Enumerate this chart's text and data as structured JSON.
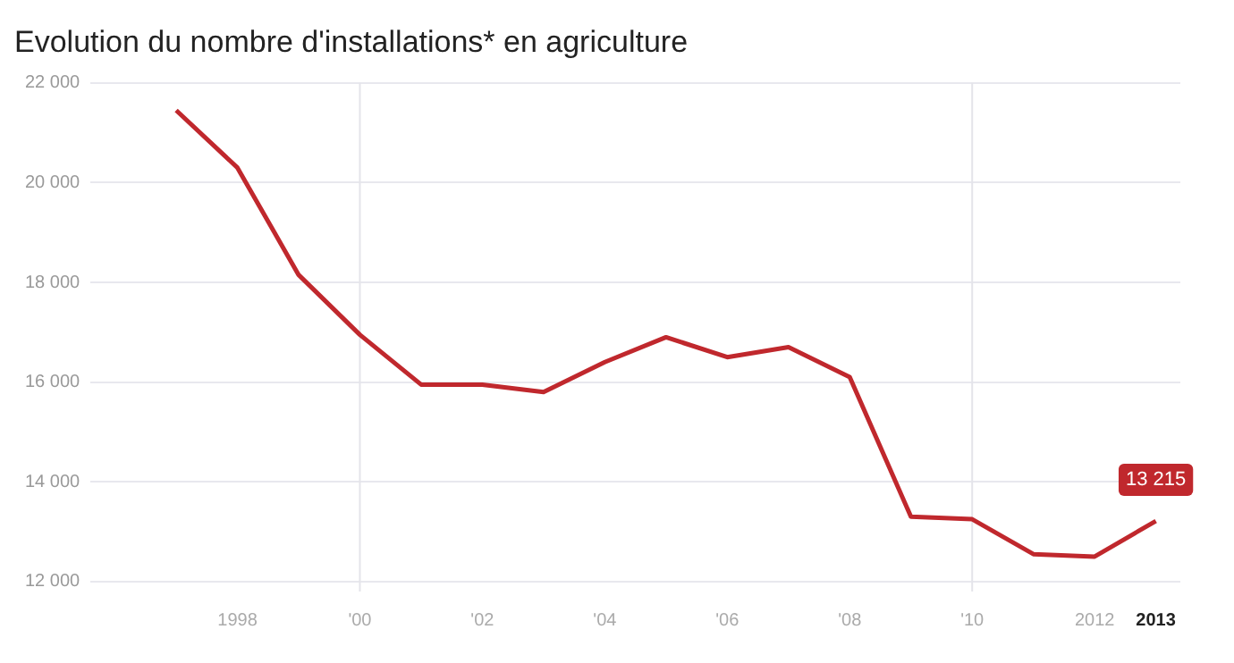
{
  "chart_data": {
    "type": "line",
    "title": "Evolution du nombre d'installations* en agriculture",
    "x": [
      1997,
      1998,
      1999,
      2000,
      2001,
      2002,
      2003,
      2004,
      2005,
      2006,
      2007,
      2008,
      2009,
      2010,
      2011,
      2012,
      2013
    ],
    "series": [
      {
        "color": "#c0282d",
        "values": [
          21450,
          20300,
          18150,
          16950,
          15950,
          15950,
          15800,
          16400,
          16900,
          16500,
          16700,
          16100,
          13300,
          13250,
          12550,
          12500,
          13215
        ],
        "value_labels": [
          null,
          null,
          null,
          null,
          null,
          null,
          null,
          null,
          null,
          null,
          null,
          null,
          null,
          null,
          null,
          null,
          "13 215"
        ]
      }
    ],
    "xlim": [
      1995.6,
      2013.4
    ],
    "xticks": [
      {
        "value": 1998,
        "label": "1998"
      },
      {
        "value": 2000,
        "label": "'00"
      },
      {
        "value": 2002,
        "label": "'02"
      },
      {
        "value": 2004,
        "label": "'04"
      },
      {
        "value": 2006,
        "label": "'06"
      },
      {
        "value": 2008,
        "label": "'08"
      },
      {
        "value": 2010,
        "label": "'10"
      },
      {
        "value": 2012,
        "label": "2012"
      },
      {
        "value": 2013,
        "label": "2013"
      }
    ],
    "ylim": [
      11800,
      22000
    ],
    "yticks": [
      {
        "value": 12000,
        "label": "12 000"
      },
      {
        "value": 14000,
        "label": "14 000"
      },
      {
        "value": 16000,
        "label": "16 000"
      },
      {
        "value": 18000,
        "label": "18 000"
      },
      {
        "value": 20000,
        "label": "20 000"
      },
      {
        "value": 22000,
        "label": "22 000"
      }
    ],
    "grid": "y",
    "ref_lines": [
      {
        "axis": "x",
        "value": 2000,
        "color": "#e4e4ea"
      },
      {
        "axis": "x",
        "value": 2010,
        "color": "#e4e4ea"
      }
    ],
    "marker": "none",
    "line_style": "solid",
    "legend": false
  }
}
